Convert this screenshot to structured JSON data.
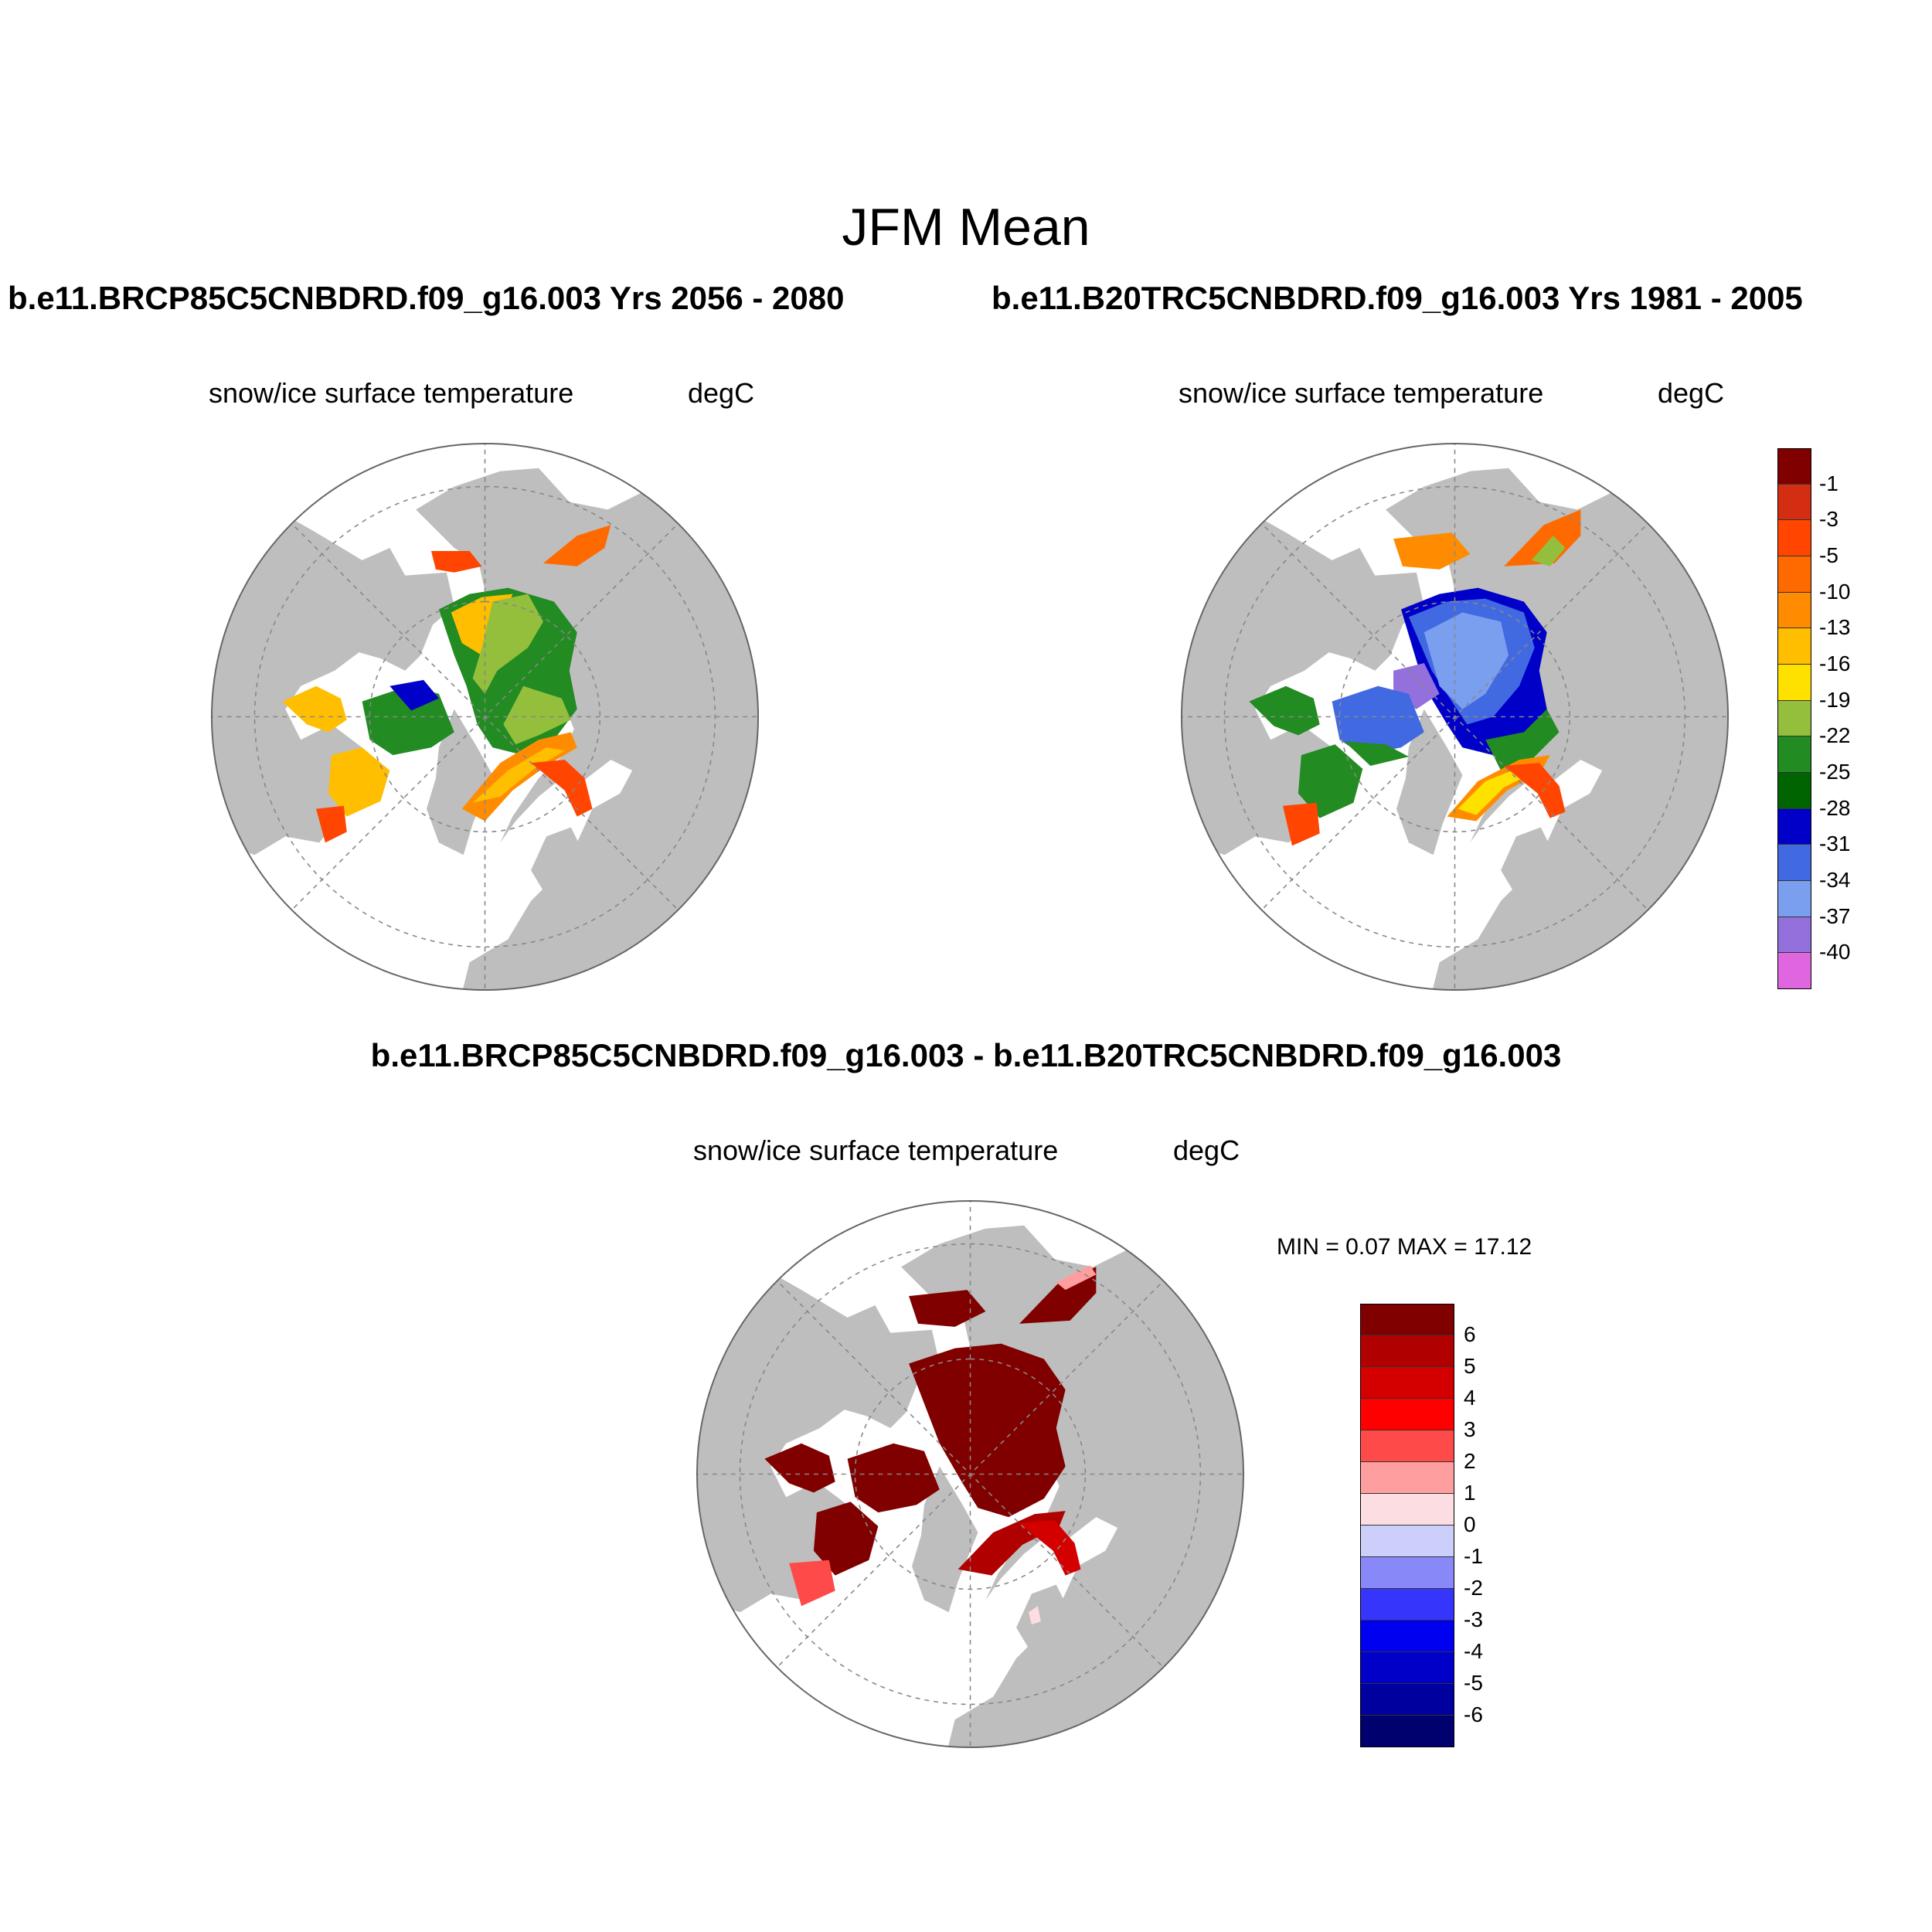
{
  "title": "JFM Mean",
  "panels": [
    {
      "id": "future",
      "case_title": "b.e11.BRCP85C5CNBDRD.f09_g16.003  Yrs 2056 - 2080",
      "variable_label": "snow/ice surface temperature",
      "units_label": "degC"
    },
    {
      "id": "historical",
      "case_title": "b.e11.B20TRC5CNBDRD.f09_g16.003  Yrs 1981 - 2005",
      "variable_label": "snow/ice surface temperature",
      "units_label": "degC"
    },
    {
      "id": "difference",
      "case_title": "b.e11.BRCP85C5CNBDRD.f09_g16.003 - b.e11.B20TRC5CNBDRD.f09_g16.003",
      "variable_label": "snow/ice surface temperature",
      "units_label": "degC",
      "stats": "MIN =   0.07 MAX =  17.12"
    }
  ],
  "colorbar_absolute": {
    "labels": [
      "-1",
      "-3",
      "-5",
      "-10",
      "-13",
      "-16",
      "-19",
      "-22",
      "-25",
      "-28",
      "-31",
      "-34",
      "-37",
      "-40"
    ],
    "colors": [
      "#800000",
      "#d42e12",
      "#ff4500",
      "#ff6a00",
      "#ff8c00",
      "#ffbe00",
      "#ffe100",
      "#94bf3d",
      "#228b22",
      "#006400",
      "#0000c8",
      "#4169e1",
      "#7b9fef",
      "#9370db",
      "#e066e0"
    ]
  },
  "colorbar_difference": {
    "labels": [
      "6",
      "5",
      "4",
      "3",
      "2",
      "1",
      "0",
      "-1",
      "-2",
      "-3",
      "-4",
      "-5",
      "-6"
    ],
    "colors": [
      "#800000",
      "#b00000",
      "#d40000",
      "#ff0000",
      "#ff4a4a",
      "#ff9e9e",
      "#fbdde2",
      "#cccff9",
      "#8888f8",
      "#3535fb",
      "#0000f0",
      "#0000c8",
      "#00009e",
      "#00006e"
    ]
  },
  "map_colors": {
    "land": "#bebebe",
    "ocean": "#ffffff",
    "grid": "#888888"
  }
}
